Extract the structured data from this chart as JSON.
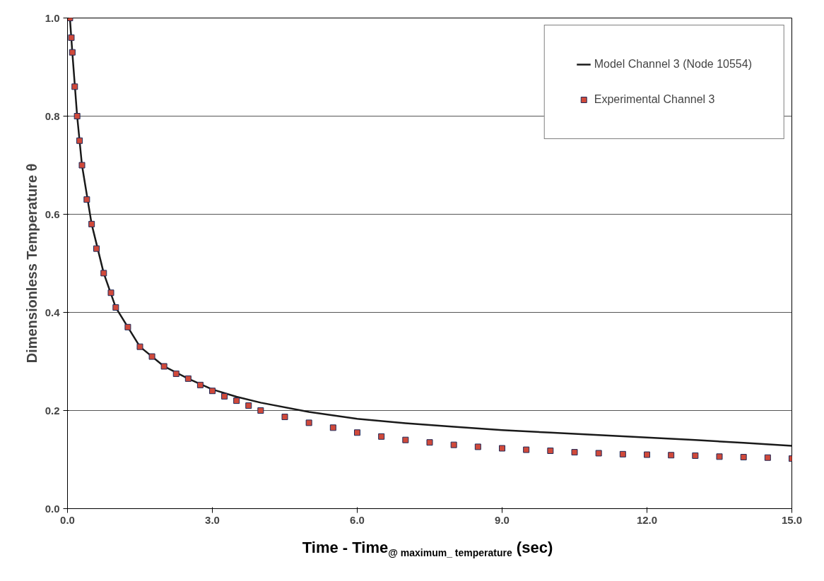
{
  "chart_data": {
    "type": "line",
    "xlabel": "Time - Time$_{@ maximum_ temperature}$ (sec)",
    "ylabel": "Dimensionless Temperature θ",
    "xlim": [
      0,
      15
    ],
    "ylim": [
      0,
      1
    ],
    "xticks": [
      {
        "value": 0,
        "label": "0.0"
      },
      {
        "value": 3,
        "label": "3.0"
      },
      {
        "value": 6,
        "label": "6.0"
      },
      {
        "value": 9,
        "label": "9.0"
      },
      {
        "value": 12,
        "label": "12.0"
      },
      {
        "value": 15,
        "label": "15.0"
      }
    ],
    "yticks": [
      {
        "value": 0,
        "label": "0.0"
      },
      {
        "value": 0.2,
        "label": "0.2"
      },
      {
        "value": 0.4,
        "label": "0.4"
      },
      {
        "value": 0.6,
        "label": "0.6"
      },
      {
        "value": 0.8,
        "label": "0.8"
      },
      {
        "value": 1,
        "label": "1.0"
      }
    ],
    "grid": "y",
    "legend": "top right",
    "series": [
      {
        "name": "Model Channel 3 (Node 10554)",
        "color": "#1a1a1a",
        "line_style": "solid",
        "x": [
          0.05,
          0.1,
          0.2,
          0.3,
          0.5,
          0.75,
          1.0,
          1.5,
          2.0,
          2.5,
          3.0,
          3.5,
          4.0,
          5.0,
          6.0,
          7.0,
          8.0,
          9.0,
          10.0,
          11.0,
          12.0,
          13.0,
          14.0,
          15.0
        ],
        "values": [
          1.0,
          0.93,
          0.8,
          0.7,
          0.58,
          0.48,
          0.41,
          0.33,
          0.29,
          0.265,
          0.243,
          0.228,
          0.216,
          0.197,
          0.183,
          0.174,
          0.167,
          0.16,
          0.155,
          0.15,
          0.145,
          0.14,
          0.134,
          0.128
        ]
      },
      {
        "name": "Experimental Channel 3",
        "type": "scatter",
        "color": "#d0493a",
        "marker": "square",
        "x": [
          0.05,
          0.08,
          0.1,
          0.15,
          0.2,
          0.25,
          0.3,
          0.4,
          0.5,
          0.6,
          0.75,
          0.9,
          1.0,
          1.25,
          1.5,
          1.75,
          2.0,
          2.25,
          2.5,
          2.75,
          3.0,
          3.25,
          3.5,
          3.75,
          4.0,
          4.5,
          5.0,
          5.5,
          6.0,
          6.5,
          7.0,
          7.5,
          8.0,
          8.5,
          9.0,
          9.5,
          10.0,
          10.5,
          11.0,
          11.5,
          12.0,
          12.5,
          13.0,
          13.5,
          14.0,
          14.5,
          15.0
        ],
        "values": [
          1.0,
          0.96,
          0.93,
          0.86,
          0.8,
          0.75,
          0.7,
          0.63,
          0.58,
          0.53,
          0.48,
          0.44,
          0.41,
          0.37,
          0.33,
          0.31,
          0.29,
          0.275,
          0.265,
          0.252,
          0.24,
          0.229,
          0.22,
          0.21,
          0.2,
          0.187,
          0.175,
          0.165,
          0.155,
          0.147,
          0.14,
          0.135,
          0.13,
          0.126,
          0.123,
          0.12,
          0.118,
          0.115,
          0.113,
          0.111,
          0.11,
          0.109,
          0.108,
          0.106,
          0.105,
          0.104,
          0.102
        ]
      }
    ]
  }
}
